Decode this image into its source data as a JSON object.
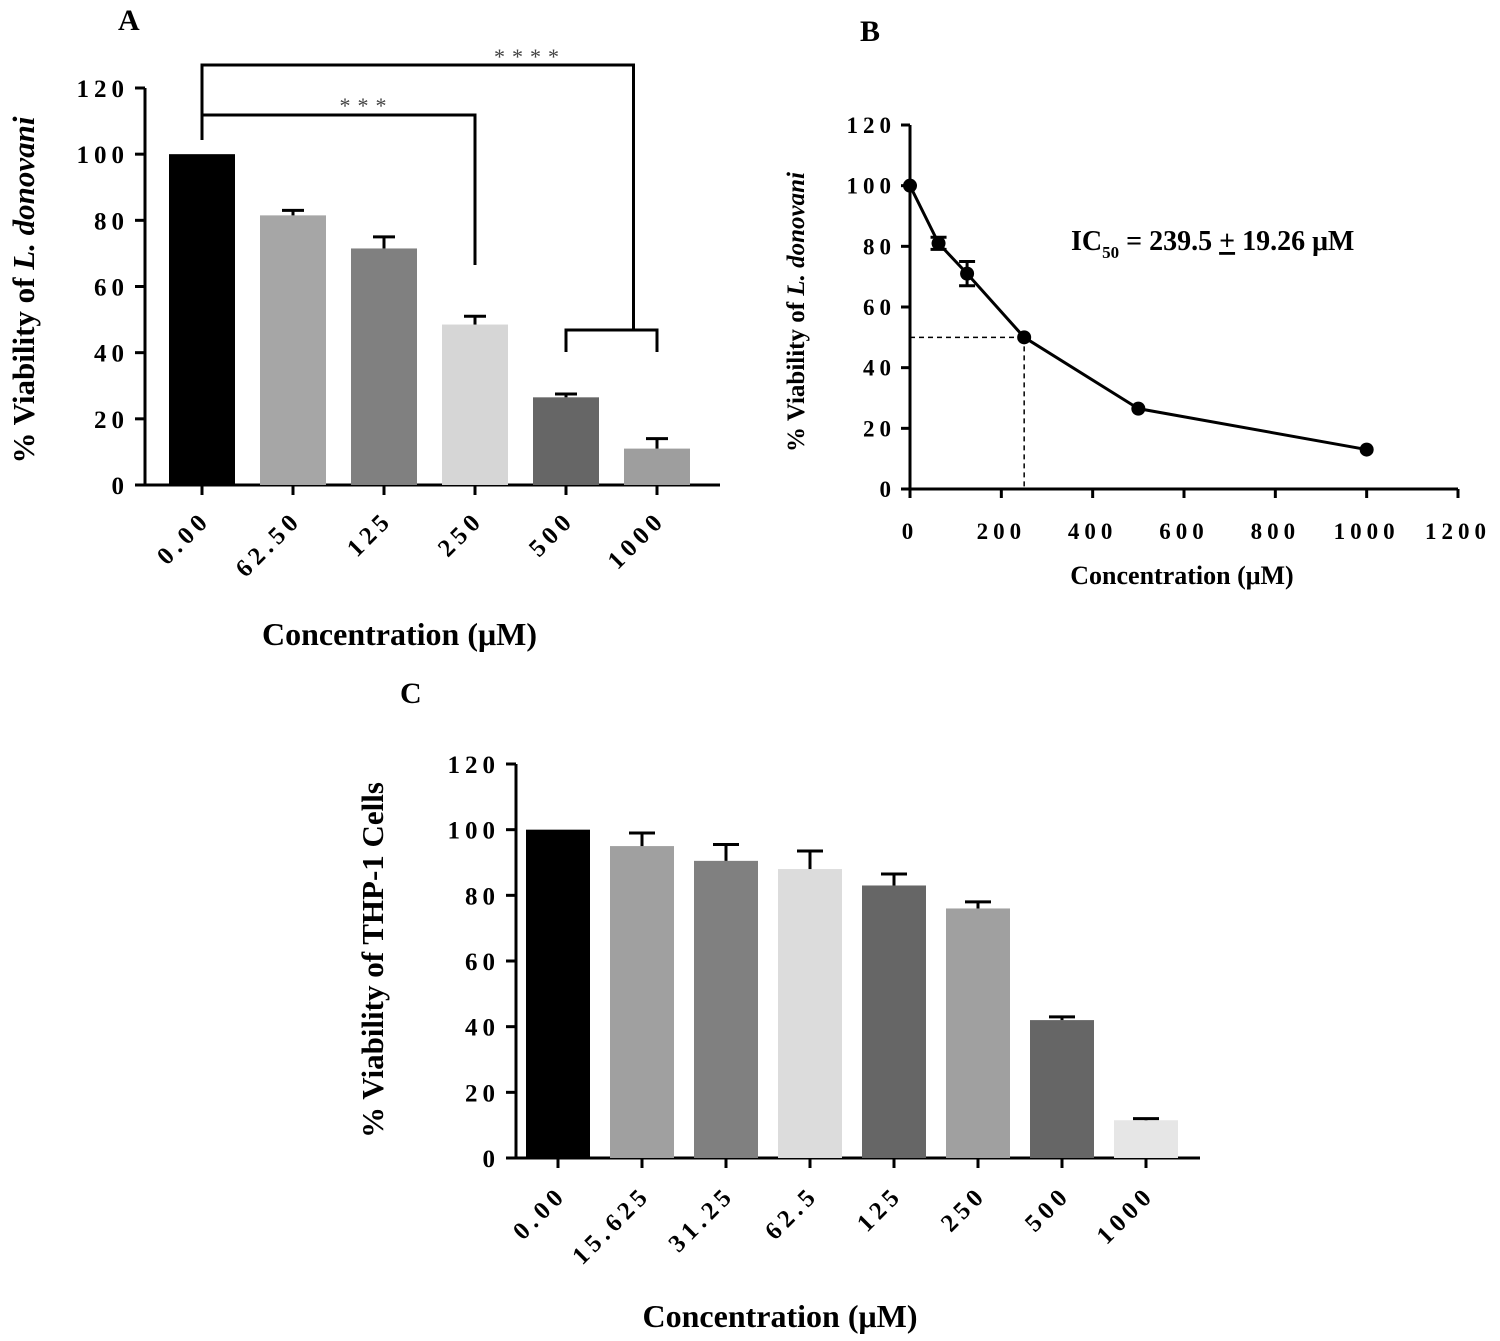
{
  "figure": {
    "background": "#ffffff"
  },
  "chart_data": [
    {
      "panel": "A",
      "type": "bar",
      "title": "",
      "xlabel": "Concentration (μM)",
      "ylabel_prefix": "% Viability of ",
      "ylabel_species": "L. donovani",
      "ylim": [
        0,
        120
      ],
      "yticks": [
        "0",
        "20",
        "40",
        "60",
        "80",
        "100",
        "120"
      ],
      "categories": [
        "0.00",
        "62.50",
        "125",
        "250",
        "500",
        "1000"
      ],
      "values": [
        100,
        81.5,
        71.5,
        48.5,
        26.5,
        11
      ],
      "errors": [
        0,
        1.5,
        3.5,
        2.5,
        1,
        3
      ],
      "colors": [
        "#000000",
        "#a6a6a6",
        "#808080",
        "#d6d6d6",
        "#666666",
        "#9e9e9e"
      ],
      "significance": [
        {
          "label": "***",
          "from": "0.00",
          "to": "250"
        },
        {
          "label": "****",
          "from": "0.00",
          "to": "500–1000"
        }
      ]
    },
    {
      "panel": "B",
      "type": "line",
      "title": "",
      "xlabel": "Concentration (μM)",
      "ylabel_prefix": "% Viability of ",
      "ylabel_species": "L. donovani",
      "xlim": [
        0,
        1200
      ],
      "ylim": [
        0,
        120
      ],
      "xticks": [
        "0",
        "200",
        "400",
        "600",
        "800",
        "1000",
        "1200"
      ],
      "yticks": [
        "0",
        "20",
        "40",
        "60",
        "80",
        "100",
        "120"
      ],
      "x": [
        0,
        62.5,
        125,
        250,
        500,
        1000
      ],
      "y": [
        100,
        81,
        71,
        50,
        26.5,
        13
      ],
      "errors": [
        0,
        2,
        4,
        0,
        0,
        0
      ],
      "reference_point": {
        "x": 250,
        "y": 50
      },
      "annotation": {
        "prefix": "IC",
        "sub": "50",
        "body": " = 239.5 ",
        "pm": "+",
        "tail": " 19.26 μM"
      }
    },
    {
      "panel": "C",
      "type": "bar",
      "title": "",
      "xlabel": "Concentration (μM)",
      "ylabel": "%  Viability of THP-1 Cells",
      "ylim": [
        0,
        120
      ],
      "yticks": [
        "0",
        "20",
        "40",
        "60",
        "80",
        "100",
        "120"
      ],
      "categories": [
        "0.00",
        "15.625",
        "31.25",
        "62.5",
        "125",
        "250",
        "500",
        "1000"
      ],
      "values": [
        100,
        95,
        90.5,
        88,
        83,
        76,
        42,
        11.5
      ],
      "errors": [
        0,
        4,
        5,
        5.5,
        3.5,
        2,
        1,
        0.5
      ],
      "colors": [
        "#000000",
        "#a0a0a0",
        "#808080",
        "#dcdcdc",
        "#666666",
        "#a0a0a0",
        "#666666",
        "#e6e6e6"
      ]
    }
  ]
}
